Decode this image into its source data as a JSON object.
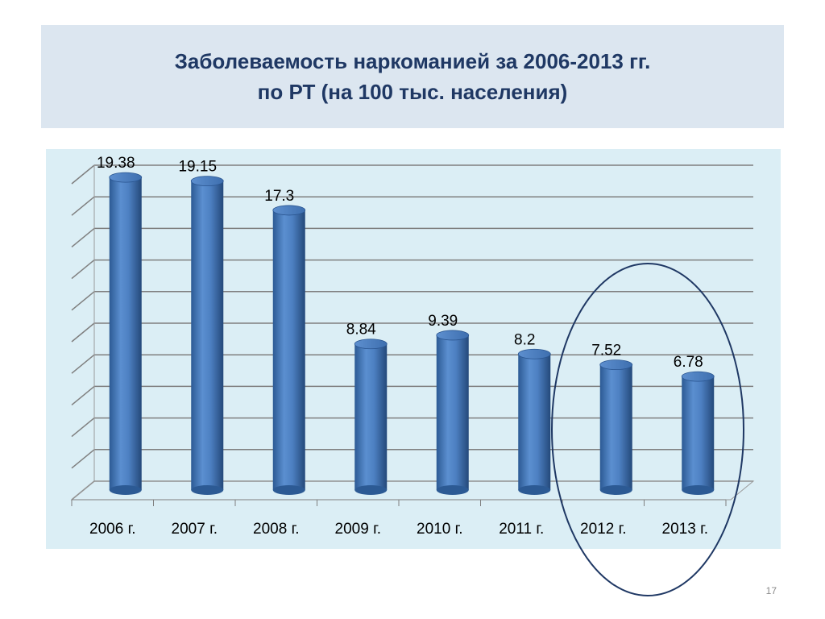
{
  "slide": {
    "title_line1": "Заболеваемость наркоманией за 2006-2013 гг.",
    "title_line2": "по РТ (на 100 тыс. населения)",
    "page_number": "17"
  },
  "chart_data": {
    "type": "bar",
    "style": "3d-cylinder",
    "categories": [
      "2006 г.",
      "2007 г.",
      "2008 г.",
      "2009 г.",
      "2010 г.",
      "2011 г.",
      "2012 г.",
      "2013 г."
    ],
    "values": [
      19.38,
      19.15,
      17.3,
      8.84,
      9.39,
      8.2,
      7.52,
      6.78
    ],
    "data_labels": [
      "19.38",
      "19.15",
      "17.3",
      "8.84",
      "9.39",
      "8.2",
      "7.52",
      "6.78"
    ],
    "title": "",
    "xlabel": "",
    "ylabel": "",
    "ylim": [
      0,
      20
    ],
    "grid": true,
    "bar_color": "#4f81bd",
    "highlight": {
      "shape": "ellipse",
      "categories": [
        "2012 г.",
        "2013 г."
      ],
      "color": "#1f3864"
    }
  }
}
